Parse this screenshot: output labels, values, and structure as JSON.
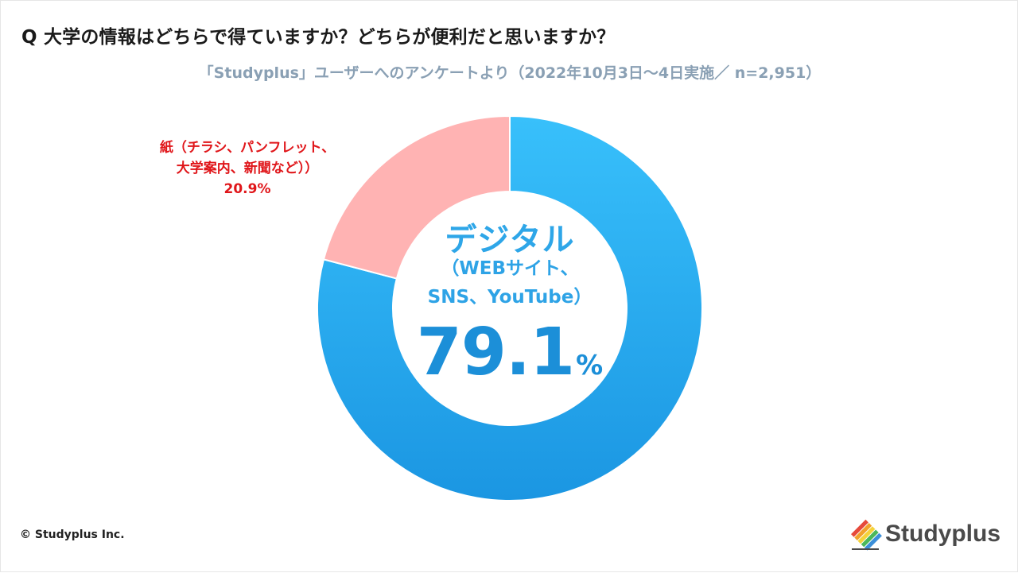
{
  "header": {
    "title": "Q 大学の情報はどちらで得ていますか？どちらが便利だと思いますか？",
    "subtitle": "「Studyplus」ユーザーへのアンケートより（2022年10月3日〜4日実施／ n=2,951）"
  },
  "chart_data": {
    "type": "pie",
    "title": "Q 大学の情報はどちらで得ていますか？どちらが便利だと思いますか？",
    "subtitle": "「Studyplus」ユーザーへのアンケートより（2022年10月3日〜4日実施／ n=2,951）",
    "categories": [
      "デジタル（WEBサイト、SNS、YouTube）",
      "紙（チラシ、パンフレット、大学案内、新聞など））"
    ],
    "values": [
      79.1,
      20.9
    ],
    "unit": "%",
    "donut": true,
    "colors": [
      "#2fb2f4",
      "#ffb3b3"
    ]
  },
  "labels": {
    "digital_title": "デジタル",
    "digital_sub1": "（WEBサイト、",
    "digital_sub2": "SNS、YouTube）",
    "digital_value": "79.1",
    "digital_unit": "%",
    "paper_line1": "紙（チラシ、パンフレット、",
    "paper_line2": "大学案内、新聞など））",
    "paper_value": "20.9%"
  },
  "footer": {
    "copyright": "© Studyplus Inc.",
    "logo_text": "Studyplus"
  },
  "colors": {
    "digital": "#2fb2f4",
    "paper": "#ffb3b3",
    "paper_label": "#e0161a",
    "center_text": "#2ea3e6"
  }
}
